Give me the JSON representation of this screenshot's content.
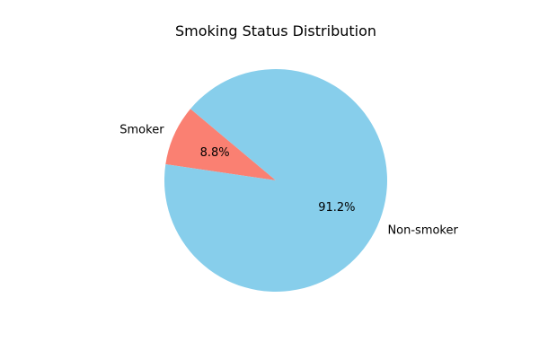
{
  "chart_data": {
    "type": "pie",
    "title": "Smoking Status Distribution",
    "start_angle_deg": 140,
    "direction": "counterclockwise",
    "slices": [
      {
        "label": "Smoker",
        "value": 8.8,
        "pct_label": "8.8%",
        "color": "#fa8072"
      },
      {
        "label": "Non-smoker",
        "value": 91.2,
        "pct_label": "91.2%",
        "color": "#87ceeb"
      }
    ]
  }
}
